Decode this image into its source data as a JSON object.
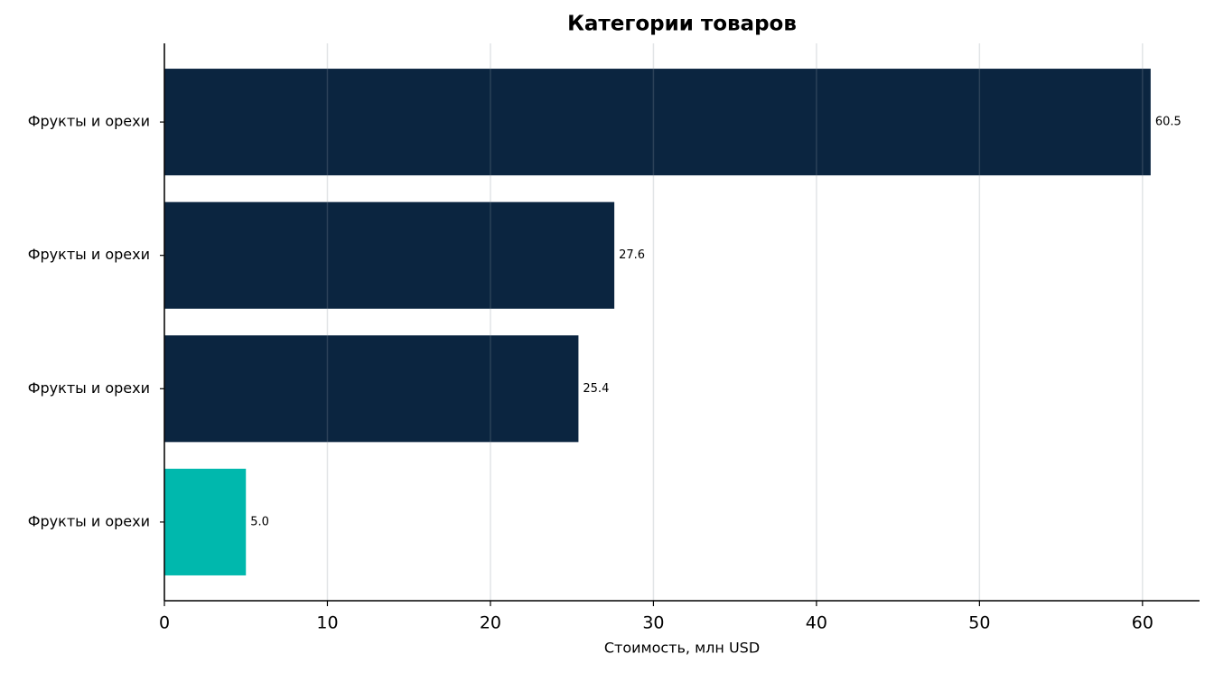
{
  "chart_data": {
    "type": "barh",
    "title": "Категории товаров",
    "xlabel": "Стоимость, млн USD",
    "categories": [
      "Фрукты и орехи",
      "Фрукты и орехи",
      "Фрукты и орехи",
      "Фрукты и орехи"
    ],
    "values": [
      60.5,
      27.6,
      25.4,
      5.0
    ],
    "value_labels": [
      "60.5",
      "27.6",
      "25.4",
      "5.0"
    ],
    "colors": [
      "#0b2540",
      "#0b2540",
      "#0b2540",
      "#00b8ad"
    ],
    "xlim": [
      0,
      63.5
    ],
    "xticks": [
      0,
      10,
      20,
      30,
      40,
      50,
      60
    ],
    "grid": true
  }
}
